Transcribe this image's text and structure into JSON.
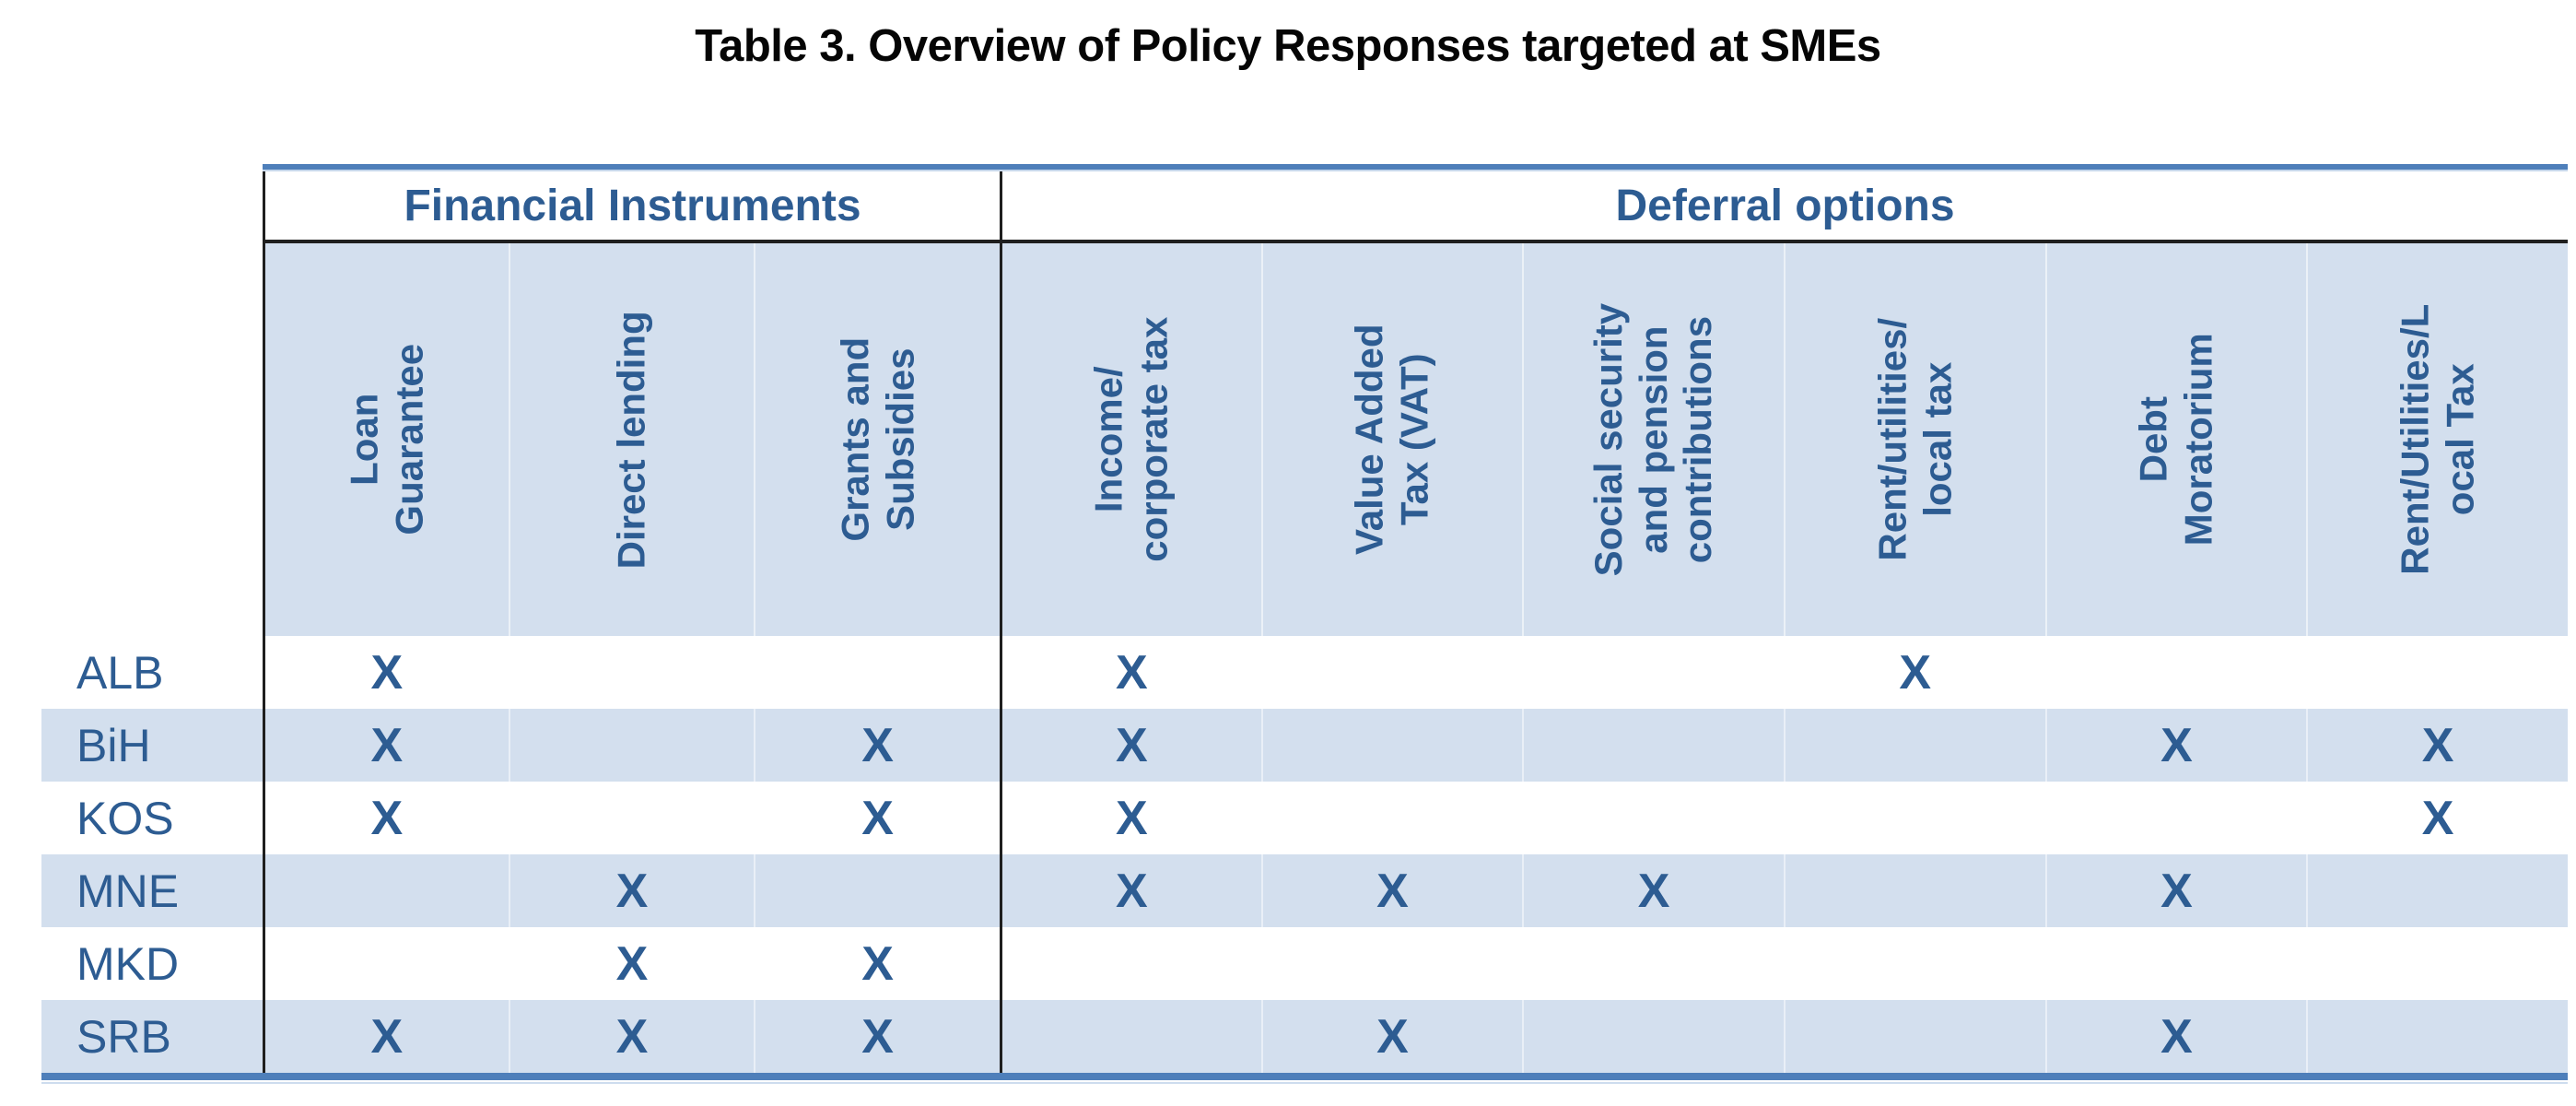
{
  "title": "Table 3. Overview of Policy Responses targeted at SMEs",
  "mark_symbol": "X",
  "groups": [
    {
      "label": "Financial Instruments",
      "columns": 3
    },
    {
      "label": "Deferral options",
      "columns": 6
    }
  ],
  "columns": [
    {
      "id": "loan-guarantee",
      "label": "Loan\nGuarantee",
      "group": 0
    },
    {
      "id": "direct-lending",
      "label": "Direct lending",
      "group": 0
    },
    {
      "id": "grants-and-subsidies",
      "label": "Grants and\nSubsidies",
      "group": 0
    },
    {
      "id": "income-corporate-tax",
      "label": "Income/\ncorporate tax",
      "group": 1
    },
    {
      "id": "value-added-tax",
      "label": "Value Added\nTax (VAT)",
      "group": 1
    },
    {
      "id": "social-security-pension-contributions",
      "label": "Social security\nand pension\ncontributions",
      "group": 1
    },
    {
      "id": "rent-utilities-local-tax",
      "label": "Rent/utilities/\nlocal tax",
      "group": 1
    },
    {
      "id": "debt-moratorium",
      "label": "Debt\nMoratorium",
      "group": 1
    },
    {
      "id": "rent-utilities-local-tax-deferral",
      "label": "Rent/Utilities/L\nocal Tax",
      "group": 1
    }
  ],
  "rows": [
    {
      "country": "ALB",
      "marks": [
        1,
        0,
        0,
        1,
        0,
        0,
        1,
        0,
        0
      ]
    },
    {
      "country": "BiH",
      "marks": [
        1,
        0,
        1,
        1,
        0,
        0,
        0,
        1,
        1
      ]
    },
    {
      "country": "KOS",
      "marks": [
        1,
        0,
        1,
        1,
        0,
        0,
        0,
        0,
        1
      ]
    },
    {
      "country": "MNE",
      "marks": [
        0,
        1,
        0,
        1,
        1,
        1,
        0,
        1,
        0
      ]
    },
    {
      "country": "MKD",
      "marks": [
        0,
        1,
        1,
        0,
        0,
        0,
        0,
        0,
        0
      ]
    },
    {
      "country": "SRB",
      "marks": [
        1,
        1,
        1,
        0,
        1,
        0,
        0,
        1,
        0
      ]
    }
  ],
  "colors": {
    "accent_text": "#2d5c92",
    "band_background": "#d3dfee",
    "blue_border": "#4e7fba",
    "black_line": "#1f1f1f"
  }
}
